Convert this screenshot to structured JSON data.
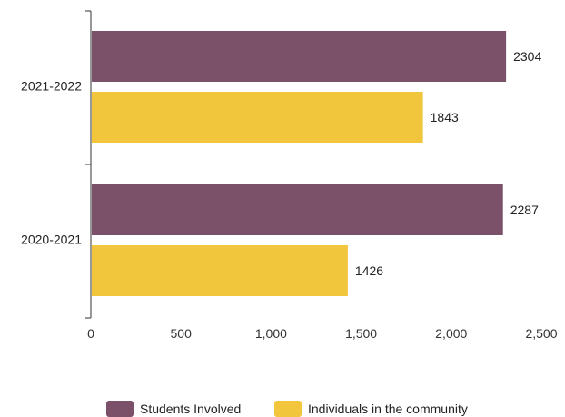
{
  "chart_data": {
    "type": "bar",
    "orientation": "horizontal",
    "categories": [
      "2021-2022",
      "2020-2021"
    ],
    "series": [
      {
        "name": "Students Involved",
        "color": "#7b5169",
        "values": [
          2304,
          2287
        ]
      },
      {
        "name": "Individuals in the community",
        "color": "#f2c63c",
        "values": [
          1843,
          1426
        ]
      }
    ],
    "xlim": [
      0,
      2500
    ],
    "x_ticks": [
      {
        "value": 0,
        "label": "0"
      },
      {
        "value": 500,
        "label": "500"
      },
      {
        "value": 1000,
        "label": "1,000"
      },
      {
        "value": 1500,
        "label": "1,500"
      },
      {
        "value": 2000,
        "label": "2,000"
      },
      {
        "value": 2500,
        "label": "2,500"
      }
    ],
    "title": "",
    "xlabel": "",
    "ylabel": "",
    "grid": false,
    "legend_position": "bottom"
  }
}
